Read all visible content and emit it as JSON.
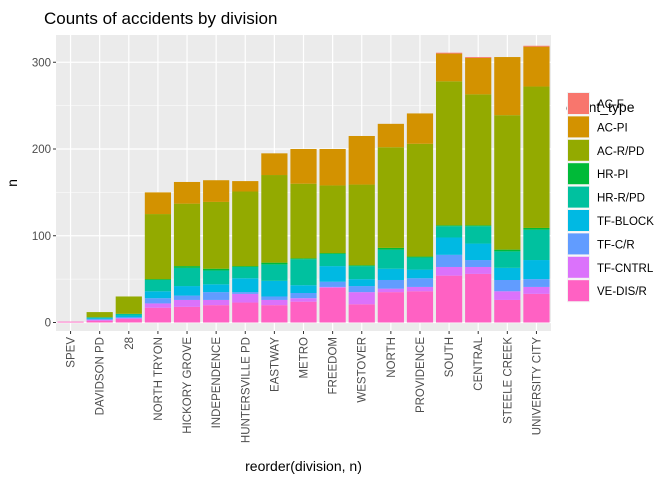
{
  "chart_data": {
    "type": "bar",
    "stacked": true,
    "title": "Counts of accidents by division",
    "xlabel": "reorder(division, n)",
    "ylabel": "n",
    "ylim": [
      0,
      320
    ],
    "yticks": [
      0,
      100,
      200,
      300
    ],
    "grid": true,
    "legend_position": "right",
    "legend_title": "event_type",
    "categories": [
      "SPEV",
      "DAVIDSON PD",
      "28",
      "NORTH TRYON",
      "HICKORY GROVE",
      "INDEPENDENCE",
      "HUNTERSVILLE PD",
      "EASTWAY",
      "METRO",
      "FREEDOM",
      "WESTOVER",
      "NORTH",
      "PROVIDENCE",
      "SOUTH",
      "CENTRAL",
      "STEELE CREEK",
      "UNIVERSITY CITY"
    ],
    "series": [
      {
        "name": "AC-F",
        "color": "#F8766D",
        "values": [
          0,
          0,
          0,
          0,
          0,
          0,
          0,
          0,
          0,
          0,
          0,
          0,
          0,
          1,
          1,
          0,
          1
        ]
      },
      {
        "name": "AC-PI",
        "color": "#D39200",
        "values": [
          0,
          0,
          0,
          25,
          25,
          25,
          12,
          25,
          40,
          42,
          56,
          27,
          35,
          32,
          42,
          67,
          46
        ]
      },
      {
        "name": "AC-R/PD",
        "color": "#93AA00",
        "values": [
          0,
          6,
          20,
          75,
          72,
          77,
          86,
          101,
          86,
          78,
          93,
          116,
          130,
          166,
          151,
          155,
          163
        ]
      },
      {
        "name": "HR-PI",
        "color": "#00BA38",
        "values": [
          0,
          0,
          0,
          1,
          2,
          2,
          1,
          2,
          1,
          1,
          1,
          2,
          1,
          1,
          1,
          2,
          2
        ]
      },
      {
        "name": "HR-R/PD",
        "color": "#00C19F",
        "values": [
          0,
          1,
          2,
          13,
          21,
          16,
          13,
          19,
          30,
          14,
          15,
          22,
          14,
          13,
          20,
          19,
          35
        ]
      },
      {
        "name": "TF-BLOCK",
        "color": "#00B9E3",
        "values": [
          0,
          1,
          2,
          8,
          11,
          9,
          16,
          18,
          9,
          18,
          8,
          13,
          10,
          20,
          19,
          14,
          22
        ]
      },
      {
        "name": "TF-C/R",
        "color": "#619CFF",
        "values": [
          0,
          1,
          1,
          6,
          5,
          9,
          2,
          4,
          6,
          6,
          7,
          10,
          10,
          14,
          8,
          13,
          9
        ]
      },
      {
        "name": "TF-CNTRL",
        "color": "#DB72FB",
        "values": [
          0,
          1,
          1,
          5,
          8,
          6,
          10,
          6,
          4,
          1,
          14,
          4,
          5,
          10,
          8,
          10,
          8
        ]
      },
      {
        "name": "VE-DIS/R",
        "color": "#FF61C3",
        "values": [
          1,
          2,
          4,
          17,
          18,
          20,
          23,
          20,
          24,
          40,
          21,
          35,
          36,
          54,
          56,
          26,
          33
        ]
      }
    ]
  }
}
